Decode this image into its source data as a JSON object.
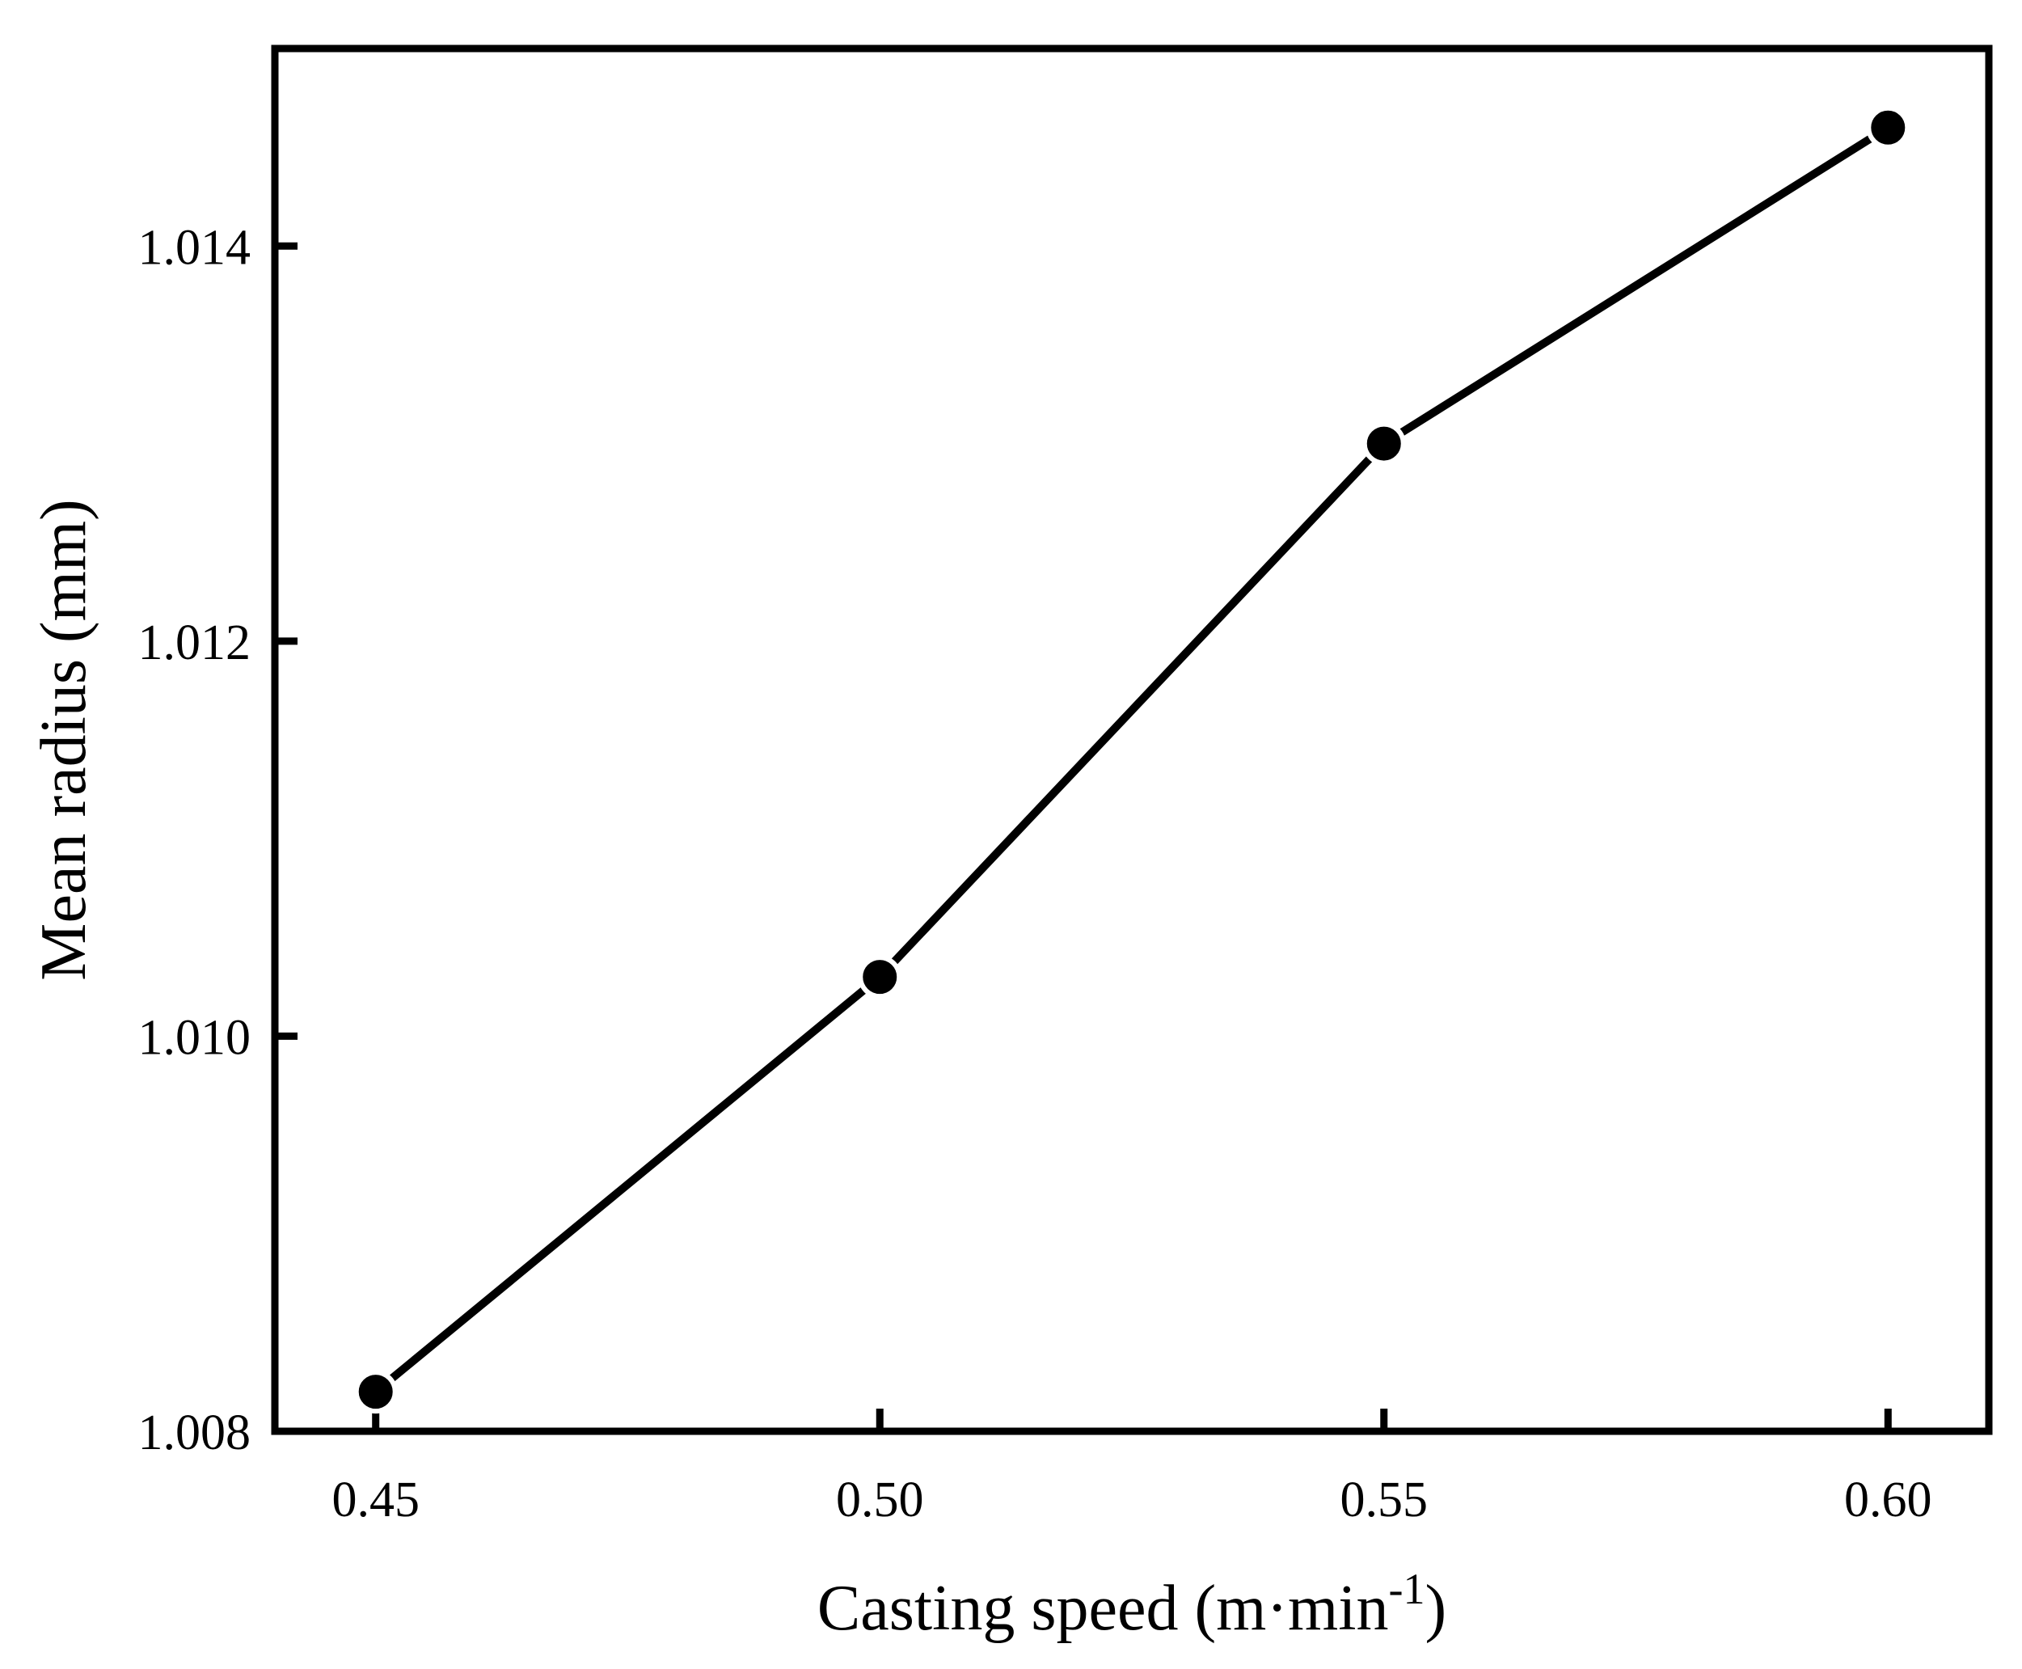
{
  "chart_data": {
    "type": "line",
    "title": "",
    "xlabel": "Casting speed (m·min",
    "xlabel_sup": "-1",
    "xlabel_close": ")",
    "ylabel": "Mean radius (mm)",
    "x": [
      0.45,
      0.5,
      0.55,
      0.6
    ],
    "xticks": [
      "0.45",
      "0.50",
      "0.55",
      "0.60"
    ],
    "yticks": [
      "1.008",
      "1.010",
      "1.012",
      "1.014"
    ],
    "ytick_values": [
      1.008,
      1.01,
      1.012,
      1.014
    ],
    "xlim": [
      0.44,
      0.61
    ],
    "ylim": [
      1.008,
      1.015
    ],
    "grid": false,
    "series": [
      {
        "name": "Mean radius",
        "values": [
          1.0082,
          1.0103,
          1.013,
          1.0146
        ],
        "color": "#000000"
      }
    ]
  }
}
